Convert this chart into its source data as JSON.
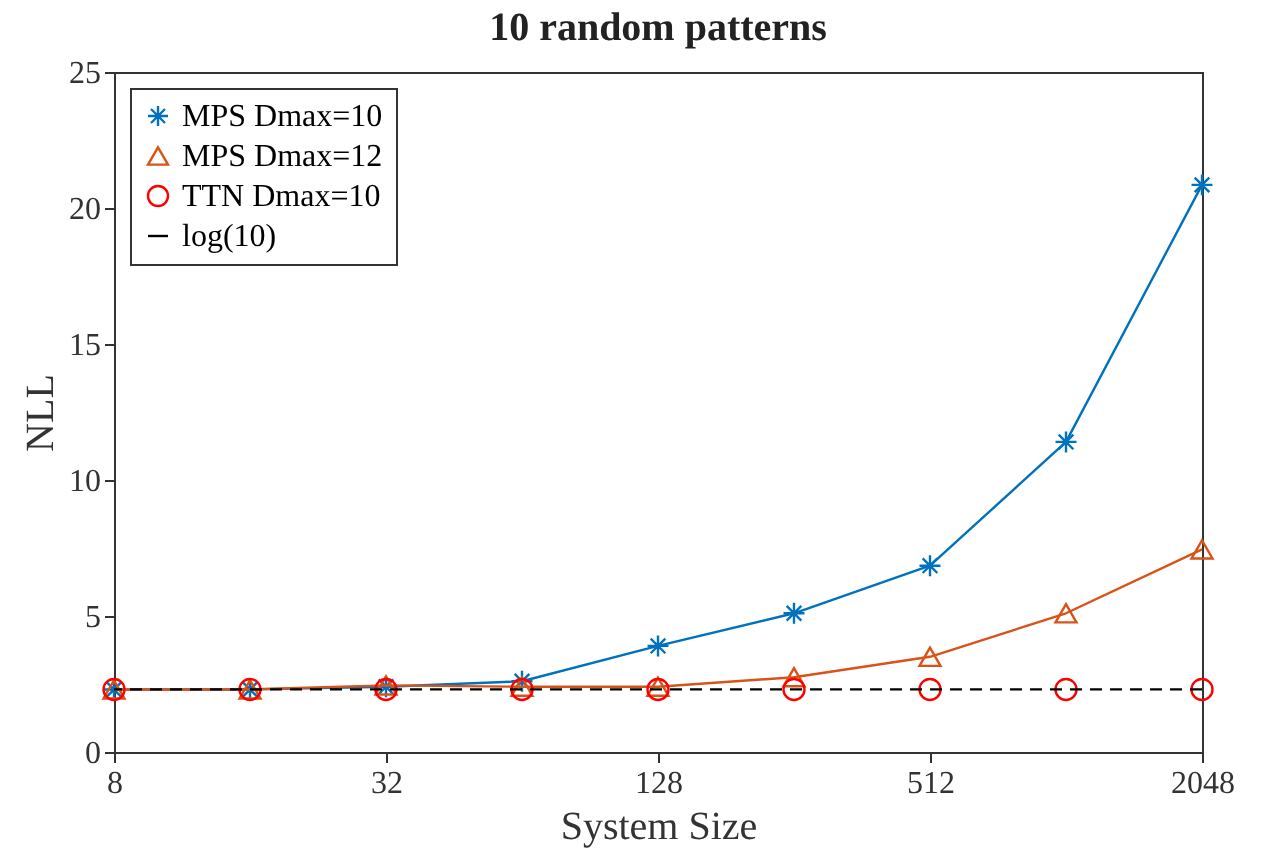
{
  "chart_data": {
    "type": "line",
    "title": "10 random patterns",
    "xlabel": "System Size",
    "ylabel": "NLL",
    "x": [
      8,
      16,
      32,
      64,
      128,
      256,
      512,
      1024,
      2048
    ],
    "series": [
      {
        "name": "MPS Dmax=10",
        "color": "#0072bd",
        "marker": "cross",
        "values": [
          2.3,
          2.3,
          2.4,
          2.6,
          3.9,
          5.1,
          6.85,
          11.4,
          20.85
        ]
      },
      {
        "name": "MPS Dmax=12",
        "color": "#d95319",
        "marker": "triangle",
        "values": [
          2.3,
          2.3,
          2.45,
          2.4,
          2.4,
          2.75,
          3.5,
          5.1,
          7.45
        ]
      },
      {
        "name": "TTN Dmax=10",
        "color": "#ff0000",
        "type": "scatter",
        "marker": "circle",
        "values": [
          2.3,
          2.3,
          2.3,
          2.3,
          2.3,
          2.3,
          2.3,
          2.3,
          2.3
        ]
      }
    ],
    "ref_lines": [
      {
        "axis": "y",
        "value": 2.3026,
        "label": "log(10)",
        "color": "#000000",
        "line_style": "dashed"
      }
    ],
    "log": "x",
    "xlim": [
      8,
      2048
    ],
    "xticks": [
      8,
      32,
      128,
      512,
      2048
    ],
    "ylim": [
      0,
      25
    ],
    "yticks": [
      0,
      5,
      10,
      15,
      20,
      25
    ],
    "grid": false,
    "legend": "top left"
  }
}
